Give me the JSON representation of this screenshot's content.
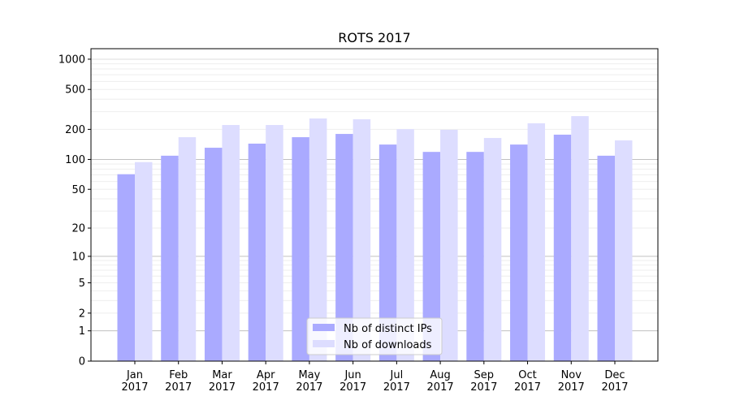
{
  "chart_data": {
    "type": "bar",
    "title": "ROTS 2017",
    "xlabel": "",
    "ylabel": "",
    "yscale": "log(1+y)",
    "ylim": [
      0,
      1270
    ],
    "yticks": [
      0,
      1,
      2,
      5,
      10,
      20,
      50,
      100,
      200,
      500,
      1000
    ],
    "ytick_labels": [
      "0",
      "1",
      "2",
      "5",
      "10",
      "20",
      "50",
      "100",
      "200",
      "500",
      "1000"
    ],
    "categories": [
      "Jan\n2017",
      "Feb\n2017",
      "Mar\n2017",
      "Apr\n2017",
      "May\n2017",
      "Jun\n2017",
      "Jul\n2017",
      "Aug\n2017",
      "Sep\n2017",
      "Oct\n2017",
      "Nov\n2017",
      "Dec\n2017"
    ],
    "category_lines": [
      [
        "Jan",
        "2017"
      ],
      [
        "Feb",
        "2017"
      ],
      [
        "Mar",
        "2017"
      ],
      [
        "Apr",
        "2017"
      ],
      [
        "May",
        "2017"
      ],
      [
        "Jun",
        "2017"
      ],
      [
        "Jul",
        "2017"
      ],
      [
        "Aug",
        "2017"
      ],
      [
        "Sep",
        "2017"
      ],
      [
        "Oct",
        "2017"
      ],
      [
        "Nov",
        "2017"
      ],
      [
        "Dec",
        "2017"
      ]
    ],
    "series": [
      {
        "name": "Nb of distinct IPs",
        "color": "#aaaaff",
        "values": [
          71,
          109,
          131,
          144,
          167,
          180,
          141,
          119,
          119,
          141,
          177,
          109
        ]
      },
      {
        "name": "Nb of downloads",
        "color": "#ddddff",
        "values": [
          94,
          167,
          221,
          221,
          257,
          252,
          201,
          198,
          164,
          230,
          271,
          155
        ]
      }
    ],
    "grid": true,
    "legend": "bottom-center"
  }
}
